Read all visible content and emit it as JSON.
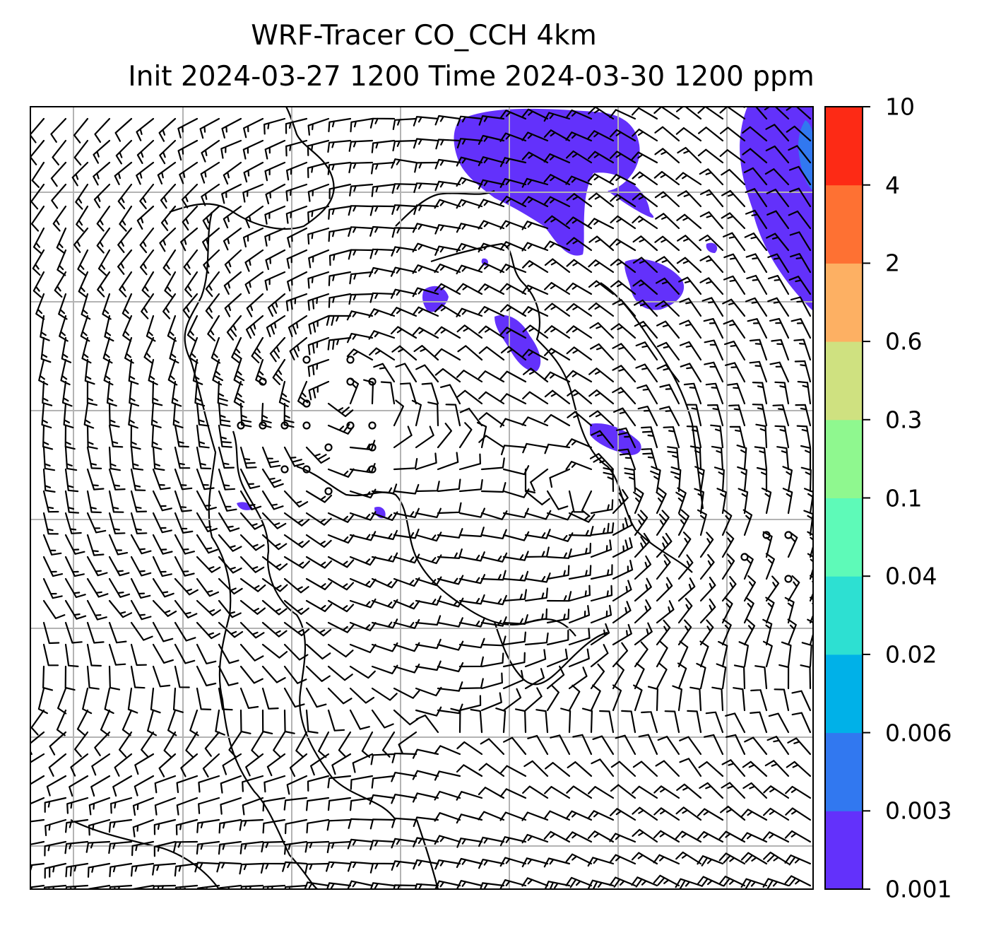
{
  "title": {
    "line1": "WRF-Tracer CO_CCH 4km",
    "line2": "Init 2024-03-27 1200 Time 2024-03-30 1200 ppm"
  },
  "colorbar": {
    "levels": [
      "0.001",
      "0.003",
      "0.006",
      "0.02",
      "0.04",
      "0.1",
      "0.3",
      "0.6",
      "2",
      "4",
      "10"
    ],
    "colors": [
      "#6331fb",
      "#3178f0",
      "#00b1e8",
      "#2de0d2",
      "#5efab8",
      "#8ff88f",
      "#cfe180",
      "#fdb063",
      "#fe7133",
      "#fd2a15"
    ]
  },
  "map": {
    "tracer_color": "#6331fb",
    "tracer_color_high": "#3178f0",
    "grid_color": "#b3b3b3",
    "wind_vectors": "wind-barbs"
  }
}
